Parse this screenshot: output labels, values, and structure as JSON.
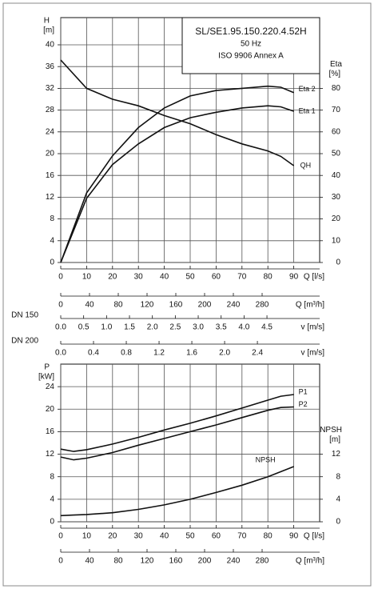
{
  "chart_data": [
    {
      "type": "line",
      "annotation_lines": [
        "SL/SE1.95.150.220.4.52H",
        "50 Hz",
        "ISO 9906 Annex A"
      ],
      "ylabel": "H",
      "yunit": "[m]",
      "y2label": "Eta",
      "y2unit": "[%]",
      "xlabel": "Q [l/s]",
      "x": [
        0,
        10,
        20,
        30,
        40,
        50,
        60,
        70,
        80,
        85,
        90
      ],
      "xlim": [
        0,
        100
      ],
      "xticks": [
        0,
        10,
        20,
        30,
        40,
        50,
        60,
        70,
        80,
        90
      ],
      "ylim": [
        0,
        45
      ],
      "yticks": [
        0,
        4,
        8,
        12,
        16,
        20,
        24,
        28,
        32,
        36,
        40
      ],
      "y2lim": [
        0,
        112.5
      ],
      "y2ticks": [
        0,
        10,
        20,
        30,
        40,
        50,
        60,
        70,
        80
      ],
      "grid": true,
      "series": [
        {
          "name": "QH",
          "color": "#111111",
          "values": [
            37.2,
            32,
            30,
            28.8,
            27,
            25.5,
            23.5,
            21.8,
            20.5,
            19.5,
            17.8
          ]
        },
        {
          "name": "Eta 2",
          "color": "#111111",
          "axis": "y2",
          "values": [
            0,
            32,
            49,
            62,
            71,
            76.5,
            79,
            80,
            81,
            80.5,
            78
          ]
        },
        {
          "name": "Eta 1",
          "color": "#111111",
          "axis": "y2",
          "values": [
            0,
            29.5,
            45,
            54.5,
            62,
            66.5,
            69,
            71,
            72,
            71.5,
            69.5
          ]
        }
      ],
      "x_axes": [
        {
          "label": "Q [m³/h]",
          "xlim": [
            0,
            360
          ],
          "xticks": [
            0,
            40,
            80,
            120,
            160,
            200,
            240,
            280
          ]
        },
        {
          "name": "DN 150",
          "label": "v [m/s]",
          "xlim": [
            0,
            5.65
          ],
          "xticks": [
            {
              "value": 0,
              "label": "0.0"
            },
            0.5,
            {
              "value": 1,
              "label": "1.0"
            },
            1.5,
            {
              "value": 2,
              "label": "2.0"
            },
            2.5,
            {
              "value": 3,
              "label": "3.0"
            },
            3.5,
            {
              "value": 4,
              "label": "4.0"
            },
            4.5
          ]
        },
        {
          "name": "DN 200",
          "label": "v [m/s]",
          "xlim": [
            0,
            3.16
          ],
          "xticks": [
            {
              "value": 0,
              "label": "0.0"
            },
            0.4,
            0.8,
            1.2,
            1.6,
            {
              "value": 2,
              "label": "2.0"
            },
            2.4
          ]
        }
      ]
    },
    {
      "type": "line",
      "ylabel": "P",
      "yunit": "[kW]",
      "y2label": "NPSH",
      "y2unit": "[m]",
      "xlabel": "Q [l/s]",
      "x": [
        0,
        5,
        10,
        20,
        30,
        40,
        50,
        60,
        70,
        80,
        85,
        90
      ],
      "xlim": [
        0,
        100
      ],
      "xticks": [
        0,
        10,
        20,
        30,
        40,
        50,
        60,
        70,
        80,
        90
      ],
      "ylim": [
        0,
        28
      ],
      "yticks": [
        0,
        4,
        8,
        12,
        16,
        20,
        24
      ],
      "y2lim": [
        0,
        28
      ],
      "y2ticks": [
        0,
        4,
        8,
        12
      ],
      "grid": true,
      "series": [
        {
          "name": "P1",
          "color": "#111111",
          "values": [
            12.9,
            12.5,
            12.8,
            13.8,
            15,
            16.3,
            17.5,
            18.8,
            20.2,
            21.6,
            22.3,
            22.6
          ]
        },
        {
          "name": "P2",
          "color": "#111111",
          "values": [
            11.5,
            11,
            11.3,
            12.3,
            13.6,
            14.8,
            16,
            17.2,
            18.5,
            19.8,
            20.3,
            20.4
          ]
        },
        {
          "name": "NPSH",
          "color": "#111111",
          "axis": "y2",
          "values": [
            1.1,
            1.2,
            1.3,
            1.6,
            2.2,
            3,
            4,
            5.2,
            6.5,
            8,
            8.9,
            9.8
          ]
        }
      ],
      "x_axes": [
        {
          "label": "Q [m³/h]",
          "xlim": [
            0,
            360
          ],
          "xticks": [
            0,
            40,
            80,
            120,
            160,
            200,
            240,
            280
          ]
        }
      ]
    }
  ]
}
